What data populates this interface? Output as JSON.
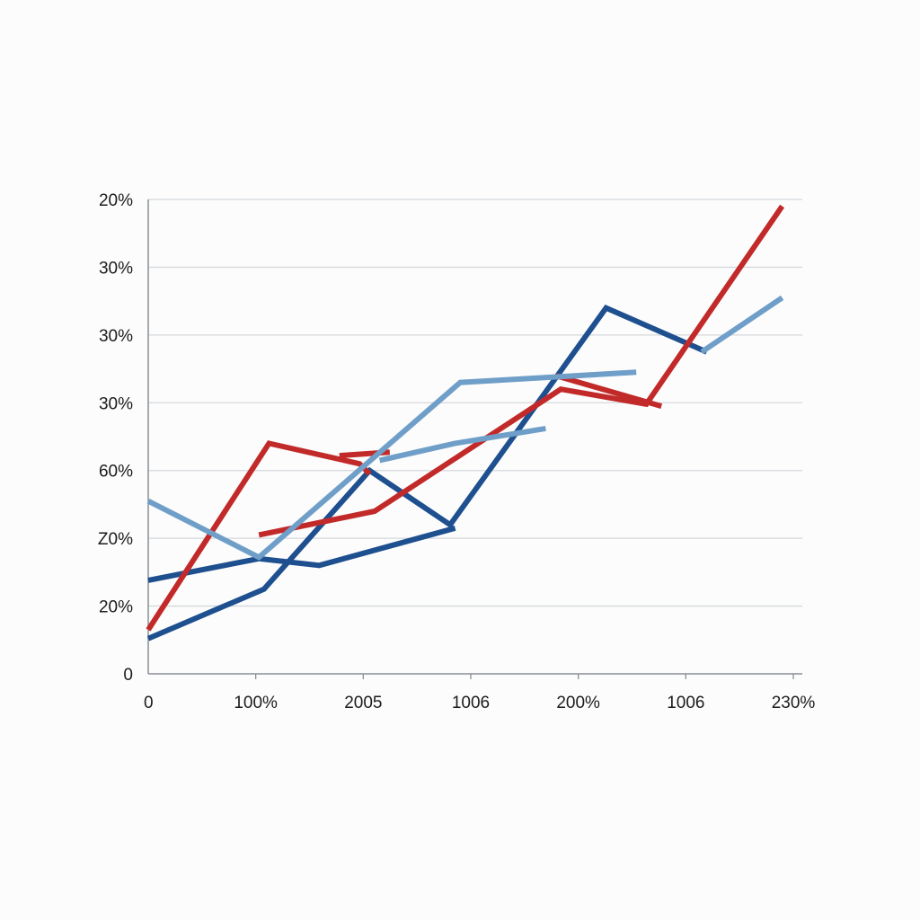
{
  "chart_data": {
    "type": "line",
    "y_tick_labels": [
      "0",
      "20%",
      "Z0%",
      "60%",
      "30%",
      "30%",
      "30%",
      "20%"
    ],
    "x_tick_labels": [
      "0",
      "100%",
      "2005",
      "1006",
      "200%",
      "1006",
      "230%"
    ],
    "xlim": [
      0,
      6.5
    ],
    "ylim": [
      0,
      7
    ],
    "grid": true,
    "legend": "none",
    "series": [
      {
        "color": "#1e4f8f",
        "segments": [
          [
            [
              0,
              0.52
            ],
            [
              1.15,
              1.25
            ],
            [
              2.2,
              3.0
            ],
            [
              3.0,
              2.2
            ],
            [
              4.55,
              5.4
            ],
            [
              5.55,
              4.75
            ]
          ],
          [
            [
              0,
              1.38
            ],
            [
              1.1,
              1.7
            ],
            [
              1.7,
              1.6
            ],
            [
              3.05,
              2.15
            ]
          ]
        ]
      },
      {
        "color": "#c22a2a",
        "segments": [
          [
            [
              0,
              0.65
            ],
            [
              1.2,
              3.4
            ],
            [
              2.1,
              3.1
            ],
            [
              2.2,
              2.95
            ]
          ],
          [
            [
              1.1,
              2.05
            ],
            [
              2.25,
              2.4
            ],
            [
              4.1,
              4.2
            ],
            [
              4.95,
              3.98
            ],
            [
              6.3,
              6.9
            ]
          ],
          [
            [
              1.9,
              3.22
            ],
            [
              2.4,
              3.27
            ]
          ],
          [
            [
              4.05,
              4.4
            ],
            [
              5.1,
              3.95
            ]
          ]
        ]
      },
      {
        "color": "#6f9fc9",
        "segments": [
          [
            [
              0,
              2.55
            ],
            [
              1.1,
              1.72
            ],
            [
              3.1,
              4.3
            ],
            [
              4.85,
              4.45
            ]
          ],
          [
            [
              2.3,
              3.15
            ],
            [
              3.05,
              3.4
            ],
            [
              3.95,
              3.62
            ]
          ],
          [
            [
              5.5,
              4.75
            ],
            [
              6.3,
              5.55
            ]
          ]
        ]
      }
    ]
  }
}
